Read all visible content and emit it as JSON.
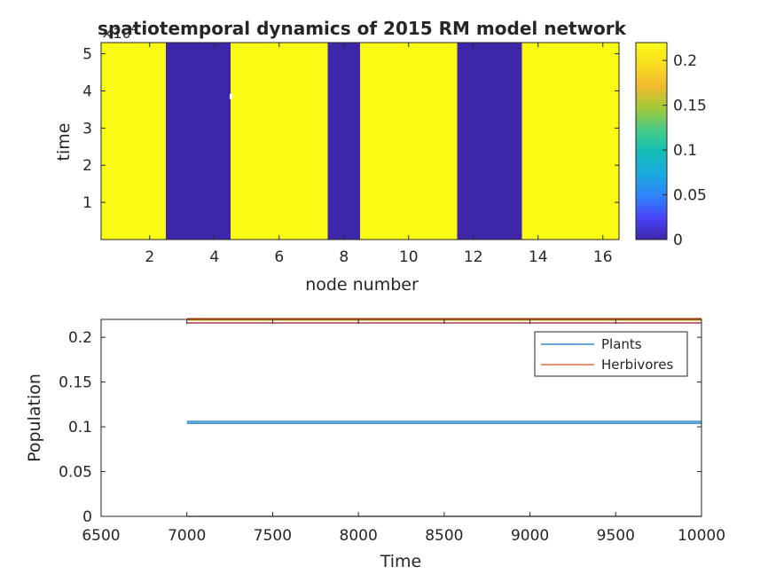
{
  "chart_data": [
    {
      "type": "heatmap",
      "title": "spatiotemporal dynamics of 2015 RM model network",
      "xlabel": "node number",
      "ylabel": "time",
      "y_exponent_label": "×10",
      "y_exponent_power": "4",
      "x_nodes": [
        1,
        2,
        3,
        4,
        5,
        6,
        7,
        8,
        9,
        10,
        11,
        12,
        13,
        14,
        15,
        16
      ],
      "node_values": [
        0.22,
        0.22,
        0,
        0,
        0.22,
        0.22,
        0.22,
        0,
        0.22,
        0.22,
        0.22,
        0,
        0,
        0.22,
        0.22,
        0.22
      ],
      "xlim": [
        0.5,
        16.5
      ],
      "ylim": [
        0,
        5.3
      ],
      "x_ticks": [
        2,
        4,
        6,
        8,
        10,
        12,
        14,
        16
      ],
      "y_ticks": [
        1,
        2,
        3,
        4,
        5
      ],
      "colorbar": {
        "range": [
          0,
          0.22
        ],
        "ticks": [
          0,
          0.05,
          0.1,
          0.15,
          0.2
        ],
        "tick_labels": [
          "0",
          "0.05",
          "0.1",
          "0.15",
          "0.2"
        ],
        "colormap": "parula",
        "colors": [
          "#3e26a8",
          "#4743f8",
          "#2e84fa",
          "#1caadf",
          "#13beb7",
          "#48cb86",
          "#a2c93a",
          "#f1ba2f",
          "#fadc21",
          "#f9fb15"
        ]
      }
    },
    {
      "type": "line",
      "xlabel": "Time",
      "ylabel": "Population",
      "xlim": [
        6500,
        10000
      ],
      "ylim": [
        0,
        0.22
      ],
      "x_ticks": [
        6500,
        7000,
        7500,
        8000,
        8500,
        9000,
        9500,
        10000
      ],
      "y_ticks": [
        0,
        0.05,
        0.1,
        0.15,
        0.2
      ],
      "y_tick_labels": [
        "0",
        "0.05",
        "0.1",
        "0.15",
        "0.2"
      ],
      "legend_position": "top-right",
      "series": [
        {
          "name": "Plants",
          "color": "#0072bd",
          "x": [
            7000,
            10000
          ],
          "levels": [
            0.106,
            0.104,
            0.0
          ]
        },
        {
          "name": "Herbivores",
          "color": "#d95319",
          "x": [
            7000,
            10000
          ],
          "levels": [
            0.221,
            0.219,
            0.216,
            0.0
          ]
        }
      ],
      "extra_line_colors": [
        "#edb120",
        "#a2142f"
      ]
    }
  ]
}
